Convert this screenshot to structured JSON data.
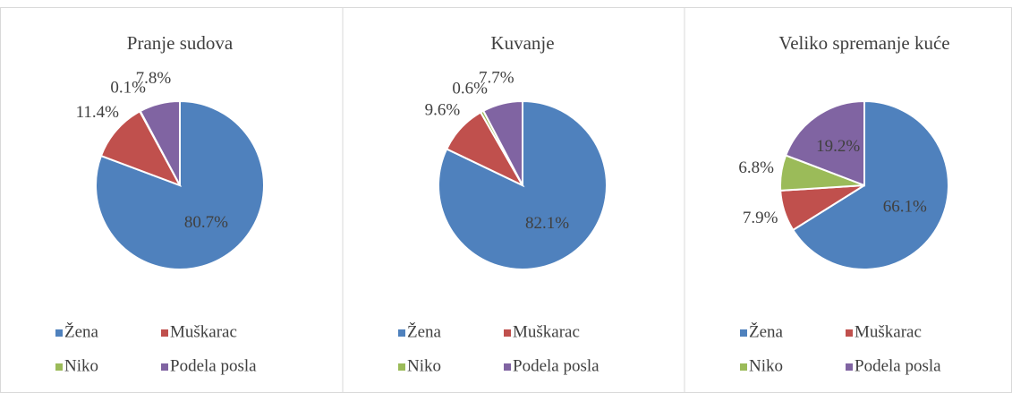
{
  "chart_data": [
    {
      "type": "pie",
      "title": "Pranje sudova",
      "categories": [
        "Žena",
        "Muškarac",
        "Niko",
        "Podela posla"
      ],
      "colors": [
        "#4f81bd",
        "#c0504d",
        "#9bbb59",
        "#8064a2"
      ],
      "values": [
        80.7,
        11.4,
        0.1,
        7.8
      ],
      "value_labels": [
        "80.7%",
        "11.4%",
        "0.1%",
        "7.8%"
      ]
    },
    {
      "type": "pie",
      "title": "Kuvanje",
      "categories": [
        "Žena",
        "Muškarac",
        "Niko",
        "Podela posla"
      ],
      "colors": [
        "#4f81bd",
        "#c0504d",
        "#9bbb59",
        "#8064a2"
      ],
      "values": [
        82.1,
        9.6,
        0.6,
        7.7
      ],
      "value_labels": [
        "82.1%",
        "9.6%",
        "0.6%",
        "7.7%"
      ]
    },
    {
      "type": "pie",
      "title": "Veliko spremanje kuće",
      "categories": [
        "Žena",
        "Muškarac",
        "Niko",
        "Podela posla"
      ],
      "colors": [
        "#4f81bd",
        "#c0504d",
        "#9bbb59",
        "#8064a2"
      ],
      "values": [
        66.1,
        7.9,
        6.8,
        19.2
      ],
      "value_labels": [
        "66.1%",
        "7.9%",
        "6.8%",
        "19.2%"
      ]
    }
  ]
}
